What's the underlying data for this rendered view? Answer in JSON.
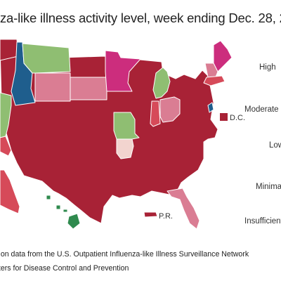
{
  "title": "za-like illness activity level, week ending Dec. 28, 2",
  "colors": {
    "high": "#a82236",
    "high_mid": "#c62e68",
    "high_pink": "#da7d93",
    "moderate": "#d64a59",
    "low": "#f2d4cf",
    "minimal": "#8fbe72",
    "insufficient": "#ffffff",
    "blue": "#1f5e8d",
    "magenta": "#cc2d7d"
  },
  "legend": {
    "high": "High",
    "moderate": "Moderate",
    "low": "Low",
    "minimal": "Minima",
    "insufficient": "Insufficient"
  },
  "map_labels": {
    "dc": "D.C.",
    "pr": "P.R."
  },
  "source": {
    "line1": "d on data from the U.S. Outpatient Influenza-like Illness Surveillance Network",
    "line2": "nters for Disease Control and Prevention"
  }
}
